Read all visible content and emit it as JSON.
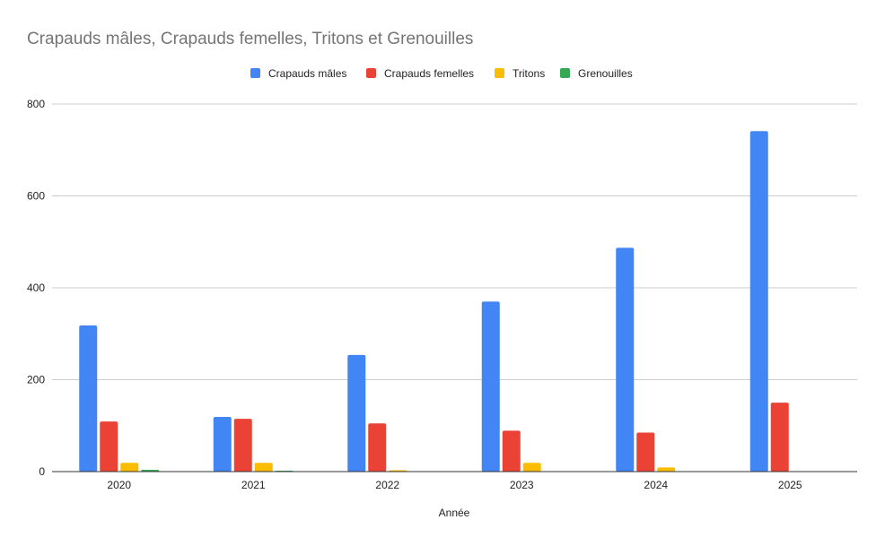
{
  "chart_data": {
    "type": "bar",
    "title": "Crapauds mâles, Crapauds femelles, Tritons et Grenouilles",
    "xlabel": "Année",
    "ylabel": "",
    "categories": [
      "2020",
      "2021",
      "2022",
      "2023",
      "2024",
      "2025"
    ],
    "series": [
      {
        "name": "Crapauds mâles",
        "color": "#4285f4",
        "values": [
          318,
          119,
          254,
          370,
          487,
          741
        ]
      },
      {
        "name": "Crapauds femelles",
        "color": "#ea4335",
        "values": [
          109,
          115,
          105,
          89,
          85,
          150
        ]
      },
      {
        "name": "Tritons",
        "color": "#fbbc04",
        "values": [
          19,
          19,
          3,
          19,
          9,
          1
        ]
      },
      {
        "name": "Grenouilles",
        "color": "#34a853",
        "values": [
          4,
          2,
          0,
          0,
          0,
          1
        ]
      }
    ],
    "ylim": [
      0,
      800
    ],
    "yticks": [
      0,
      200,
      400,
      600,
      800
    ],
    "grid": true,
    "legend_position": "top"
  }
}
